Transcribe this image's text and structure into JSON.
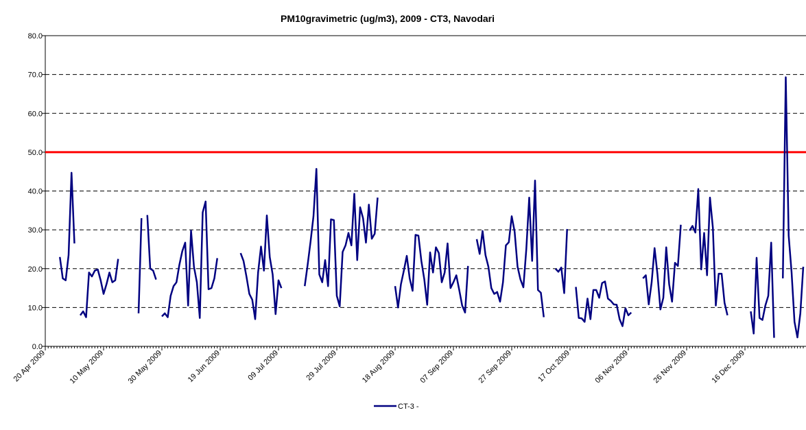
{
  "chart_data": {
    "type": "line",
    "title": "PM10gravimetric (ug/m3), 2009 - CT3, Navodari",
    "categories": [
      "20 Apr 2009",
      null,
      null,
      null,
      null,
      null,
      null,
      null,
      null,
      null,
      null,
      null,
      null,
      null,
      null,
      null,
      null,
      null,
      null,
      null,
      "10 May 2009",
      null,
      null,
      null,
      null,
      null,
      null,
      null,
      null,
      null,
      null,
      null,
      null,
      null,
      null,
      null,
      null,
      null,
      null,
      null,
      "30 May 2009",
      null,
      null,
      null,
      null,
      null,
      null,
      null,
      null,
      null,
      null,
      null,
      null,
      null,
      null,
      null,
      null,
      null,
      null,
      null,
      "19 Jun 2009",
      null,
      null,
      null,
      null,
      null,
      null,
      null,
      null,
      null,
      null,
      null,
      null,
      null,
      null,
      null,
      null,
      null,
      null,
      null,
      "09 Jul 2009",
      null,
      null,
      null,
      null,
      null,
      null,
      null,
      null,
      null,
      null,
      null,
      null,
      null,
      null,
      null,
      null,
      null,
      null,
      null,
      "29 Jul 2009",
      null,
      null,
      null,
      null,
      null,
      null,
      null,
      null,
      null,
      null,
      null,
      null,
      null,
      null,
      null,
      null,
      null,
      null,
      null,
      "18 Aug 2009",
      null,
      null,
      null,
      null,
      null,
      null,
      null,
      null,
      null,
      null,
      null,
      null,
      null,
      null,
      null,
      null,
      null,
      null,
      null,
      "07 Sep 2009",
      null,
      null,
      null,
      null,
      null,
      null,
      null,
      null,
      null,
      null,
      null,
      null,
      null,
      null,
      null,
      null,
      null,
      null,
      null,
      "27 Sep 2009",
      null,
      null,
      null,
      null,
      null,
      null,
      null,
      null,
      null,
      null,
      null,
      null,
      null,
      null,
      null,
      null,
      null,
      null,
      null,
      "17 Oct 2009",
      null,
      null,
      null,
      null,
      null,
      null,
      null,
      null,
      null,
      null,
      null,
      null,
      null,
      null,
      null,
      null,
      null,
      null,
      null,
      "06 Nov 2009",
      null,
      null,
      null,
      null,
      null,
      null,
      null,
      null,
      null,
      null,
      null,
      null,
      null,
      null,
      null,
      null,
      null,
      null,
      null,
      "26 Nov 2009",
      null,
      null,
      null,
      null,
      null,
      null,
      null,
      null,
      null,
      null,
      null,
      null,
      null,
      null,
      null,
      null,
      null,
      null,
      null,
      "16 Dec 2009",
      null,
      null,
      null,
      null,
      null,
      null,
      null,
      null,
      null,
      null,
      null,
      null,
      null,
      null,
      null,
      null,
      null,
      null,
      null,
      null
    ],
    "series": [
      {
        "name": "CT-3 -",
        "color": "#000080",
        "values": [
          null,
          null,
          null,
          null,
          null,
          23,
          17.5,
          17,
          23.5,
          44.7,
          26.5,
          null,
          8,
          9,
          7.5,
          19,
          18,
          19.5,
          19.8,
          17,
          13.5,
          16,
          19,
          16.5,
          17,
          22.5,
          null,
          null,
          null,
          null,
          null,
          null,
          8.5,
          33,
          null,
          33.8,
          20,
          19.5,
          17.2,
          null,
          7.7,
          8.5,
          7.5,
          13,
          15.5,
          16.5,
          21,
          24.5,
          26.7,
          10.5,
          29.8,
          20.5,
          16.5,
          7.3,
          34.5,
          37.3,
          14.7,
          15,
          17.5,
          22.7,
          null,
          null,
          null,
          null,
          null,
          null,
          null,
          24,
          22,
          18,
          13.5,
          12,
          7,
          19,
          25.7,
          19.5,
          33.7,
          23,
          18.5,
          8.3,
          17,
          15,
          null,
          null,
          null,
          null,
          null,
          null,
          null,
          15.5,
          21,
          27,
          33.5,
          45.7,
          18.5,
          16.5,
          22.2,
          15.5,
          32.7,
          32.5,
          13,
          10.3,
          24.3,
          26,
          29.2,
          26,
          39.3,
          22.2,
          35.8,
          33,
          26.7,
          36.5,
          27.7,
          29,
          38.3,
          null,
          null,
          null,
          null,
          null,
          15.5,
          10,
          16,
          19.5,
          23.3,
          17.5,
          14.3,
          28.7,
          28.5,
          22,
          17.3,
          10.7,
          24.2,
          19,
          25.5,
          24,
          16.5,
          19,
          26.5,
          15,
          16.5,
          18.3,
          14.5,
          10.5,
          8.7,
          20.7,
          null,
          null,
          27.6,
          23.8,
          29.7,
          23.5,
          20.5,
          15,
          13.5,
          14,
          11.5,
          16.5,
          26,
          26.8,
          33.5,
          29.5,
          20.5,
          17.2,
          15.2,
          25,
          38.3,
          22,
          42.7,
          14.5,
          13.8,
          7.5,
          null,
          null,
          null,
          20,
          19.2,
          20.3,
          13.7,
          30.2,
          null,
          null,
          15.3,
          7.3,
          7.2,
          6.3,
          12.3,
          7,
          14.5,
          14.5,
          12.5,
          16.3,
          16.7,
          12.3,
          11.7,
          10.8,
          10.7,
          7,
          5.2,
          9.8,
          8,
          8.7,
          null,
          null,
          null,
          17.5,
          18.3,
          10.8,
          16.5,
          25.3,
          18.5,
          9.5,
          12.5,
          25.5,
          16,
          11.5,
          21.5,
          20.7,
          31.3,
          null,
          null,
          29.8,
          31,
          29.3,
          40.5,
          19.8,
          29.2,
          18.3,
          38.3,
          30.5,
          10.5,
          18.7,
          18.7,
          11.2,
          8,
          null,
          null,
          null,
          null,
          null,
          null,
          null,
          9,
          3.3,
          22.8,
          7.3,
          6.8,
          10.5,
          13,
          26.7,
          2.2,
          null,
          null,
          17.5,
          69.3,
          28.5,
          19,
          6.3,
          2.3,
          8.5,
          20.5
        ]
      }
    ],
    "limit_line": {
      "value": 50,
      "color": "#ff0000"
    },
    "ylim": [
      0,
      80
    ],
    "yticks": [
      {
        "value": 0,
        "label": "0.0"
      },
      {
        "value": 10,
        "label": "10.0"
      },
      {
        "value": 20,
        "label": "20.0"
      },
      {
        "value": 30,
        "label": "30.0"
      },
      {
        "value": 40,
        "label": "40.0"
      },
      {
        "value": 50,
        "label": "50.0"
      },
      {
        "value": 60,
        "label": "60.0"
      },
      {
        "value": 70,
        "label": "70.0"
      },
      {
        "value": 80,
        "label": "80.0"
      }
    ],
    "grid": true,
    "legend": "bottom"
  }
}
